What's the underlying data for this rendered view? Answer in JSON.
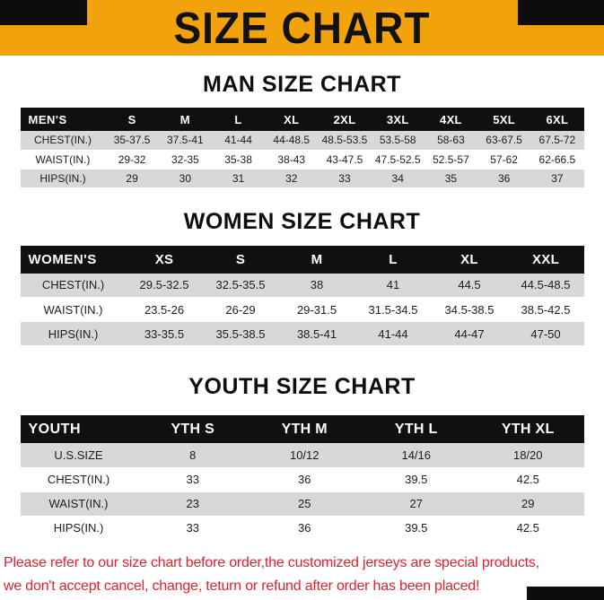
{
  "page": {
    "title": "SIZE CHART",
    "footer_line1": "Please refer to our size chart before order,the customized jerseys are special products,",
    "footer_line2": "we don't accept cancel, change, teturn or refund after order has been placed!"
  },
  "colors": {
    "banner_orange": "#F2A30B",
    "table_header_black": "#101010",
    "stripe_gray": "#D8D8D8",
    "footer_red": "#E41E2D"
  },
  "men": {
    "heading": "MAN SIZE CHART",
    "header": [
      "MEN'S",
      "S",
      "M",
      "L",
      "XL",
      "2XL",
      "3XL",
      "4XL",
      "5XL",
      "6XL"
    ],
    "rows": [
      [
        "CHEST(IN.)",
        "35-37.5",
        "37.5-41",
        "41-44",
        "44-48.5",
        "48.5-53.5",
        "53.5-58",
        "58-63",
        "63-67.5",
        "67.5-72"
      ],
      [
        "WAIST(IN.)",
        "29-32",
        "32-35",
        "35-38",
        "38-43",
        "43-47.5",
        "47.5-52.5",
        "52.5-57",
        "57-62",
        "62-66.5"
      ],
      [
        "HIPS(IN.)",
        "29",
        "30",
        "31",
        "32",
        "33",
        "34",
        "35",
        "36",
        "37"
      ]
    ]
  },
  "women": {
    "heading": "WOMEN SIZE CHART",
    "header": [
      "WOMEN'S",
      "XS",
      "S",
      "M",
      "L",
      "XL",
      "XXL"
    ],
    "rows": [
      [
        "CHEST(IN.)",
        "29.5-32.5",
        "32.5-35.5",
        "38",
        "41",
        "44.5",
        "44.5-48.5"
      ],
      [
        "WAIST(IN.)",
        "23.5-26",
        "26-29",
        "29-31.5",
        "31.5-34.5",
        "34.5-38.5",
        "38.5-42.5"
      ],
      [
        "HIPS(IN.)",
        "33-35.5",
        "35.5-38.5",
        "38.5-41",
        "41-44",
        "44-47",
        "47-50"
      ]
    ]
  },
  "youth": {
    "heading": "YOUTH SIZE CHART",
    "header": [
      "YOUTH",
      "YTH S",
      "YTH M",
      "YTH L",
      "YTH XL"
    ],
    "rows": [
      [
        "U.S.SIZE",
        "8",
        "10/12",
        "14/16",
        "18/20"
      ],
      [
        "CHEST(IN.)",
        "33",
        "36",
        "39.5",
        "42.5"
      ],
      [
        "WAIST(IN.)",
        "23",
        "25",
        "27",
        "29"
      ],
      [
        "HIPS(IN.)",
        "33",
        "36",
        "39.5",
        "42.5"
      ]
    ]
  }
}
